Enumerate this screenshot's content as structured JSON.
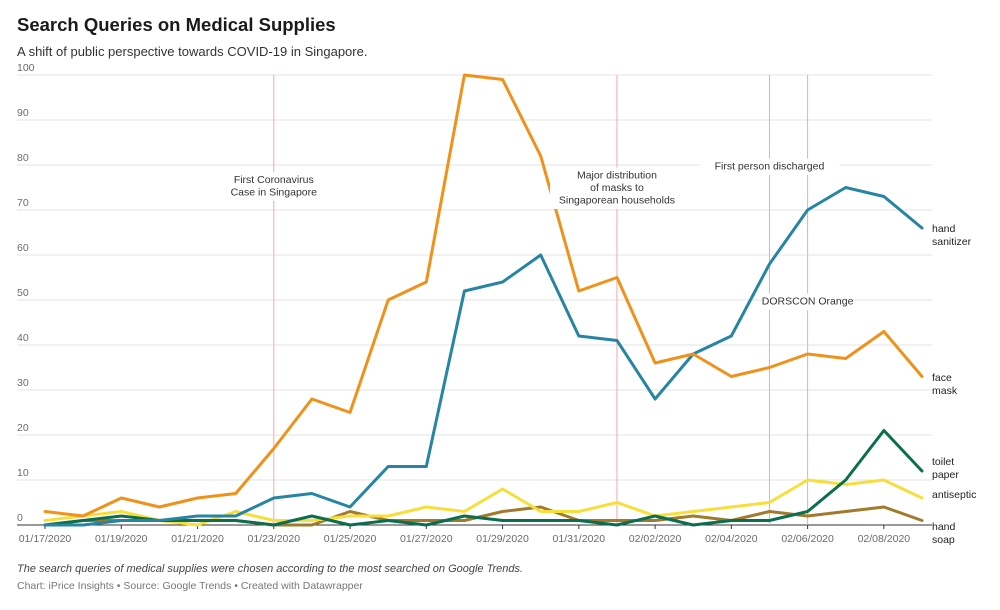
{
  "header": {
    "title": "Search Queries on Medical Supplies",
    "subtitle": "A shift of public perspective towards COVID-19 in Singapore."
  },
  "footer": {
    "note": "The search queries of medical supplies were chosen according to the most searched on Google Trends.",
    "credit": "Chart: iPrice Insights • Source: Google Trends • Created with Datawrapper"
  },
  "chart_data": {
    "type": "line",
    "x": [
      "01/17/2020",
      "01/18/2020",
      "01/19/2020",
      "01/20/2020",
      "01/21/2020",
      "01/22/2020",
      "01/23/2020",
      "01/24/2020",
      "01/25/2020",
      "01/26/2020",
      "01/27/2020",
      "01/28/2020",
      "01/29/2020",
      "01/30/2020",
      "01/31/2020",
      "02/01/2020",
      "02/02/2020",
      "02/03/2020",
      "02/04/2020",
      "02/05/2020",
      "02/06/2020",
      "02/07/2020",
      "02/08/2020",
      "02/09/2020"
    ],
    "x_tick_labels": [
      "01/17/2020",
      "01/19/2020",
      "01/21/2020",
      "01/23/2020",
      "01/25/2020",
      "01/27/2020",
      "01/29/2020",
      "01/31/2020",
      "02/02/2020",
      "02/04/2020",
      "02/06/2020",
      "02/08/2020"
    ],
    "ylim": [
      0,
      100
    ],
    "y_ticks": [
      0,
      10,
      20,
      30,
      40,
      50,
      60,
      70,
      80,
      90,
      100
    ],
    "grid": true,
    "legend": "direct labels at line ends",
    "series": [
      {
        "name": "hand sanitizer",
        "color": "#2685a3",
        "values": [
          0,
          0,
          1,
          1,
          2,
          2,
          6,
          7,
          4,
          13,
          13,
          52,
          54,
          60,
          42,
          41,
          28,
          38,
          42,
          58,
          70,
          75,
          73,
          66
        ]
      },
      {
        "name": "face mask",
        "color": "#f0911a",
        "values": [
          3,
          2,
          6,
          4,
          6,
          7,
          17,
          28,
          25,
          50,
          54,
          100,
          99,
          82,
          52,
          55,
          36,
          38,
          33,
          35,
          38,
          37,
          43,
          33
        ]
      },
      {
        "name": "toilet paper",
        "color": "#0b6e4f",
        "values": [
          0,
          1,
          2,
          1,
          1,
          1,
          0,
          2,
          0,
          1,
          0,
          2,
          1,
          1,
          1,
          0,
          2,
          0,
          1,
          1,
          3,
          10,
          21,
          12
        ]
      },
      {
        "name": "antiseptic",
        "color": "#f7df3b",
        "values": [
          1,
          2,
          3,
          1,
          0,
          3,
          1,
          1,
          2,
          2,
          4,
          3,
          8,
          3,
          3,
          5,
          2,
          3,
          4,
          5,
          10,
          9,
          10,
          6
        ]
      },
      {
        "name": "hand soap",
        "color": "#a27a2c",
        "values": [
          0,
          1,
          1,
          1,
          1,
          1,
          0,
          0,
          3,
          1,
          1,
          1,
          3,
          4,
          1,
          1,
          1,
          2,
          1,
          3,
          2,
          3,
          4,
          1
        ]
      }
    ],
    "annotations": [
      {
        "x": "01/23/2020",
        "text": [
          "First Coronavirus",
          "Case in Singapore"
        ],
        "text_y": 76
      },
      {
        "x": "02/01/2020",
        "text": [
          "Major distribution",
          "of masks to",
          "Singaporean households"
        ],
        "text_y": 77
      },
      {
        "x": "02/05/2020",
        "text": [
          "First person discharged"
        ],
        "text_y": 79
      },
      {
        "x": "02/06/2020",
        "text": [
          "DORSCON Orange"
        ],
        "text_y": 49
      }
    ]
  }
}
